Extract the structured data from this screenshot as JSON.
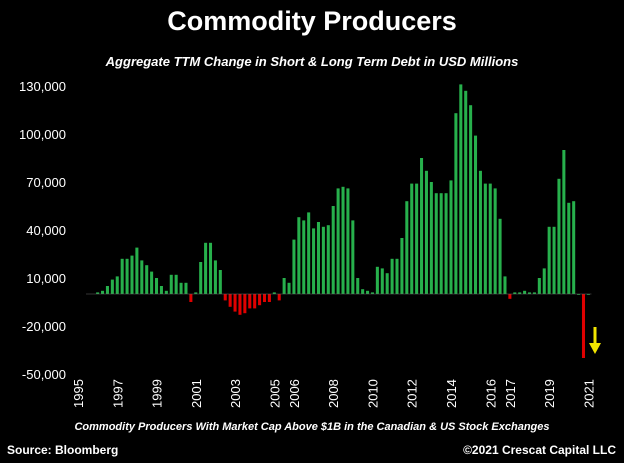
{
  "title": "Commodity Producers",
  "subtitle": "Aggregate TTM Change in Short & Long Term Debt in USD Millions",
  "footnote": "Commodity Producers With Market Cap Above $1B in the Canadian & US Stock Exchanges",
  "source": "Source: Bloomberg",
  "copyright": "©2021 Crescat Capital LLC",
  "chart_data": {
    "type": "bar",
    "title": "Commodity Producers",
    "subtitle": "Aggregate TTM Change in Short & Long Term Debt in USD Millions",
    "xlabel": "",
    "ylabel": "",
    "ylim": [
      -50000,
      130000
    ],
    "yticks": [
      -50000,
      -20000,
      10000,
      40000,
      70000,
      100000,
      130000
    ],
    "ytick_labels": [
      "-50,000",
      "-20,000",
      "10,000",
      "40,000",
      "70,000",
      "100,000",
      "130,000"
    ],
    "xlim": [
      1995,
      2022.1
    ],
    "xticks": [
      1995,
      1997,
      1999,
      2001,
      2003,
      2005,
      2006,
      2008,
      2010,
      2012,
      2014,
      2016,
      2017,
      2019,
      2021
    ],
    "xtick_labels": [
      "1995",
      "1997",
      "1999",
      "2001",
      "2003",
      "2005",
      "2006",
      "2008",
      "2010",
      "2012",
      "2014",
      "2016",
      "2017",
      "2019",
      "2021"
    ],
    "positive_color": "#27b04c",
    "negative_color": "#e00000",
    "arrow_color": "#f2e600",
    "grid": false,
    "legend": "none",
    "x": [
      1996.0,
      1996.25,
      1996.5,
      1996.75,
      1997.0,
      1997.25,
      1997.5,
      1997.75,
      1998.0,
      1998.25,
      1998.5,
      1998.75,
      1999.0,
      1999.25,
      1999.5,
      1999.75,
      2000.0,
      2000.25,
      2000.5,
      2000.75,
      2001.0,
      2001.25,
      2001.5,
      2001.75,
      2002.0,
      2002.25,
      2002.5,
      2002.75,
      2003.0,
      2003.25,
      2003.5,
      2003.75,
      2004.0,
      2004.25,
      2004.5,
      2004.75,
      2005.0,
      2005.25,
      2005.5,
      2005.75,
      2006.0,
      2006.25,
      2006.5,
      2006.75,
      2007.0,
      2007.25,
      2007.5,
      2007.75,
      2008.0,
      2008.25,
      2008.5,
      2008.75,
      2009.0,
      2009.25,
      2009.5,
      2009.75,
      2010.0,
      2010.25,
      2010.5,
      2010.75,
      2011.0,
      2011.25,
      2011.5,
      2011.75,
      2012.0,
      2012.25,
      2012.5,
      2012.75,
      2013.0,
      2013.25,
      2013.5,
      2013.75,
      2014.0,
      2014.25,
      2014.5,
      2014.75,
      2015.0,
      2015.25,
      2015.5,
      2015.75,
      2016.0,
      2016.25,
      2016.5,
      2016.75,
      2017.0,
      2017.25,
      2017.5,
      2017.75,
      2018.0,
      2018.25,
      2018.5,
      2018.75,
      2019.0,
      2019.25,
      2019.5,
      2019.75,
      2020.0,
      2020.25,
      2020.5,
      2020.75,
      2021.0
    ],
    "values": [
      1000,
      2000,
      5000,
      9000,
      11000,
      22000,
      22000,
      24000,
      29000,
      21000,
      18000,
      14000,
      10000,
      5000,
      2000,
      12000,
      12000,
      7000,
      7000,
      -5000,
      1000,
      20000,
      32000,
      32000,
      21000,
      15000,
      -4000,
      -8000,
      -11000,
      -13000,
      -12000,
      -9000,
      -9000,
      -7000,
      -5000,
      -5000,
      1000,
      -4000,
      10000,
      7000,
      34000,
      48000,
      46000,
      51000,
      41000,
      45000,
      42000,
      43000,
      55000,
      66000,
      67000,
      66000,
      46000,
      10000,
      3000,
      2000,
      1000,
      17000,
      16000,
      13000,
      22000,
      22000,
      35000,
      58000,
      69000,
      69000,
      85000,
      77000,
      70000,
      63000,
      63000,
      63000,
      71000,
      113000,
      131000,
      127000,
      118000,
      99000,
      77000,
      69000,
      69000,
      66000,
      47000,
      11000,
      -3000,
      1000,
      1000,
      2000,
      1000,
      1000,
      10000,
      16000,
      42000,
      42000,
      72000,
      90000,
      57000,
      58000,
      0,
      -40000,
      0
    ]
  }
}
